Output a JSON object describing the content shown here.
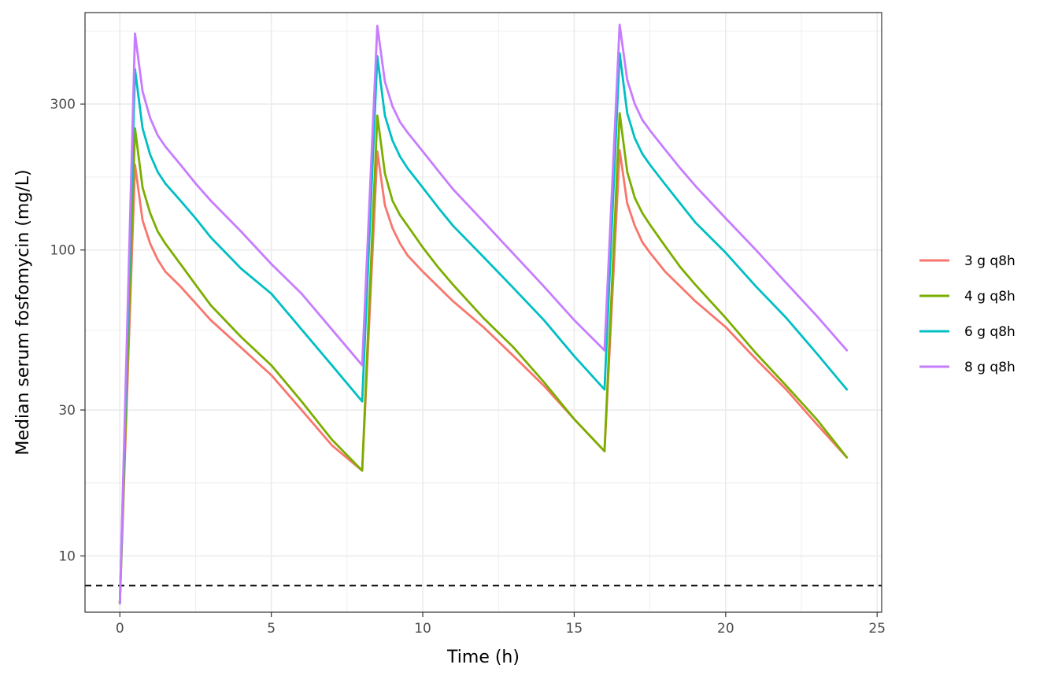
{
  "chart_data": {
    "type": "line",
    "title": "",
    "xlabel": "Time (h)",
    "ylabel": "Median serum fosfomycin (mg/L)",
    "xlim": [
      -1.15,
      25.15
    ],
    "ylim": [
      6.55,
      597
    ],
    "yscale": "log10",
    "x_ticks": [
      0,
      5,
      10,
      15,
      20,
      25
    ],
    "y_ticks": [
      10,
      30,
      100,
      300
    ],
    "x_tick_labels": [
      "0",
      "5",
      "10",
      "15",
      "20",
      "25"
    ],
    "y_tick_labels": [
      "10",
      "30",
      "100",
      "300"
    ],
    "grid": true,
    "legend_position": "right",
    "reference_line": {
      "y": 8,
      "style": "dashed",
      "color": "#000000"
    },
    "x": [
      0,
      0.5,
      0.75,
      1,
      1.25,
      1.5,
      2,
      2.5,
      3,
      4,
      5,
      6,
      7,
      8,
      8.5,
      8.75,
      9,
      9.25,
      9.5,
      10,
      10.5,
      11,
      12,
      13,
      14,
      15,
      16,
      16.5,
      16.75,
      17,
      17.25,
      17.5,
      18,
      18.5,
      19,
      20,
      21,
      22,
      23,
      24
    ],
    "series": [
      {
        "name": "3 g q8h",
        "color": "#F8766D",
        "values": [
          7,
          190,
          125,
          105,
          93,
          85,
          76,
          67,
          59,
          48,
          39,
          30,
          23,
          19,
          210,
          140,
          118,
          105,
          96,
          85,
          76,
          68,
          56,
          45,
          36,
          28,
          22,
          212,
          142,
          120,
          106,
          98,
          85,
          76,
          68,
          56,
          44,
          35,
          27,
          21
        ]
      },
      {
        "name": "4 g q8h",
        "color": "#7CAE00",
        "values": [
          7,
          250,
          160,
          132,
          115,
          105,
          90,
          77,
          66,
          52,
          42,
          32,
          24,
          19,
          275,
          178,
          145,
          130,
          120,
          102,
          88,
          77,
          60,
          48,
          37,
          28,
          22,
          280,
          180,
          148,
          132,
          121,
          103,
          88,
          77,
          60,
          46,
          36,
          28,
          21
        ]
      },
      {
        "name": "6 g q8h",
        "color": "#00BFC4",
        "values": [
          7,
          390,
          250,
          205,
          180,
          165,
          145,
          127,
          110,
          87,
          72,
          55,
          42,
          32,
          430,
          275,
          228,
          202,
          185,
          160,
          138,
          120,
          95,
          75,
          59,
          45,
          35,
          440,
          280,
          232,
          206,
          190,
          164,
          142,
          123,
          98,
          76,
          60,
          46,
          35
        ]
      },
      {
        "name": "8 g q8h",
        "color": "#C77CFF",
        "values": [
          7,
          510,
          330,
          270,
          237,
          218,
          190,
          165,
          145,
          115,
          90,
          72,
          55,
          42,
          540,
          355,
          295,
          262,
          242,
          210,
          182,
          158,
          124,
          97,
          76,
          59,
          47,
          545,
          360,
          300,
          266,
          246,
          213,
          185,
          162,
          127,
          100,
          78,
          61,
          47
        ]
      }
    ]
  }
}
